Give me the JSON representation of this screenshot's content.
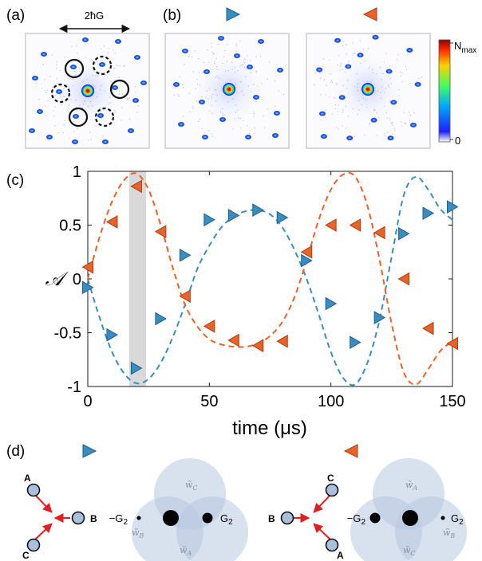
{
  "panel_labels": {
    "a": "(a)",
    "b": "(b)",
    "c": "(c)",
    "d": "(d)"
  },
  "panel_a": {
    "scale_label": "2ħG"
  },
  "colorbar": {
    "max_label": "N",
    "max_sub": "max",
    "min_label": "0"
  },
  "chart_data": {
    "type": "scatter",
    "xlabel": "time (μs)",
    "ylabel": "𝒜",
    "xlim": [
      0,
      150
    ],
    "ylim": [
      -1,
      1
    ],
    "xticks": [
      "0",
      "50",
      "100",
      "150"
    ],
    "yticks": [
      "1",
      "0.5",
      "0",
      "-0.5",
      "-1"
    ],
    "shaded_band": [
      17,
      24
    ],
    "series": [
      {
        "marker": "triangle-right",
        "color": "#3a8dbf",
        "points": [
          [
            0,
            -0.08
          ],
          [
            10,
            -0.52
          ],
          [
            20,
            -0.83
          ],
          [
            30,
            -0.37
          ],
          [
            40,
            0.22
          ],
          [
            50,
            0.55
          ],
          [
            60,
            0.59
          ],
          [
            70,
            0.64
          ],
          [
            80,
            0.57
          ],
          [
            90,
            0.17
          ],
          [
            100,
            -0.23
          ],
          [
            110,
            -0.59
          ],
          [
            120,
            -0.36
          ],
          [
            130,
            0.42
          ],
          [
            140,
            0.61
          ],
          [
            150,
            0.67
          ]
        ],
        "fit": [
          [
            0,
            0.0
          ],
          [
            5,
            -0.37
          ],
          [
            10,
            -0.68
          ],
          [
            15,
            -0.88
          ],
          [
            20,
            -0.97
          ],
          [
            25,
            -0.93
          ],
          [
            30,
            -0.78
          ],
          [
            35,
            -0.54
          ],
          [
            40,
            -0.24
          ],
          [
            45,
            0.09
          ],
          [
            50,
            0.31
          ],
          [
            55,
            0.48
          ],
          [
            60,
            0.58
          ],
          [
            65,
            0.63
          ],
          [
            70,
            0.64
          ],
          [
            75,
            0.6
          ],
          [
            80,
            0.48
          ],
          [
            85,
            0.27
          ],
          [
            90,
            0.0
          ],
          [
            95,
            -0.33
          ],
          [
            100,
            -0.68
          ],
          [
            105,
            -0.92
          ],
          [
            110,
            -0.98
          ],
          [
            115,
            -0.78
          ],
          [
            120,
            -0.38
          ],
          [
            125,
            0.21
          ],
          [
            130,
            0.78
          ],
          [
            135,
            0.95
          ],
          [
            140,
            0.83
          ],
          [
            145,
            0.65
          ],
          [
            150,
            0.55
          ]
        ]
      },
      {
        "marker": "triangle-left",
        "color": "#e8622a",
        "points": [
          [
            0,
            0.11
          ],
          [
            10,
            0.53
          ],
          [
            20,
            0.86
          ],
          [
            30,
            0.44
          ],
          [
            40,
            -0.16
          ],
          [
            50,
            -0.44
          ],
          [
            60,
            -0.57
          ],
          [
            70,
            -0.62
          ],
          [
            80,
            -0.58
          ],
          [
            90,
            0.25
          ],
          [
            100,
            0.5
          ],
          [
            110,
            0.5
          ],
          [
            120,
            0.43
          ],
          [
            130,
            0.0
          ],
          [
            140,
            -0.46
          ],
          [
            150,
            -0.6
          ]
        ],
        "fit": [
          [
            0,
            0.0
          ],
          [
            5,
            0.4
          ],
          [
            10,
            0.72
          ],
          [
            15,
            0.92
          ],
          [
            20,
            0.98
          ],
          [
            25,
            0.83
          ],
          [
            30,
            0.5
          ],
          [
            35,
            0.1
          ],
          [
            40,
            -0.24
          ],
          [
            45,
            -0.44
          ],
          [
            50,
            -0.56
          ],
          [
            55,
            -0.61
          ],
          [
            60,
            -0.63
          ],
          [
            65,
            -0.63
          ],
          [
            70,
            -0.6
          ],
          [
            75,
            -0.53
          ],
          [
            80,
            -0.4
          ],
          [
            85,
            -0.17
          ],
          [
            90,
            0.17
          ],
          [
            95,
            0.55
          ],
          [
            100,
            0.83
          ],
          [
            105,
            0.97
          ],
          [
            110,
            0.95
          ],
          [
            115,
            0.68
          ],
          [
            120,
            0.18
          ],
          [
            125,
            -0.42
          ],
          [
            130,
            -0.87
          ],
          [
            135,
            -0.98
          ],
          [
            140,
            -0.84
          ],
          [
            145,
            -0.67
          ],
          [
            150,
            -0.58
          ]
        ]
      }
    ]
  },
  "panel_d": {
    "left": {
      "sites": [
        "A",
        "B",
        "C"
      ],
      "g_neg": "−G",
      "g_pos": "G",
      "g_sub": "2",
      "w_top": "w̃",
      "w_top_sub": "C",
      "w_left": "w̃",
      "w_left_sub": "B",
      "w_bottom": "w̃",
      "w_bottom_sub": "A"
    },
    "right": {
      "sites": [
        "C",
        "B",
        "A"
      ],
      "g_neg": "−G",
      "g_pos": "G",
      "g_sub": "2",
      "w_top": "w̃",
      "w_top_sub": "A",
      "w_right": "w̃",
      "w_right_sub": "B",
      "w_bottom": "w̃",
      "w_bottom_sub": "C"
    }
  },
  "colors": {
    "blue": "#3a8dbf",
    "orange": "#e8622a",
    "grey_band": "#d9d9d9",
    "lobe": "#b8c8e0",
    "site": "#a9bfdc"
  }
}
